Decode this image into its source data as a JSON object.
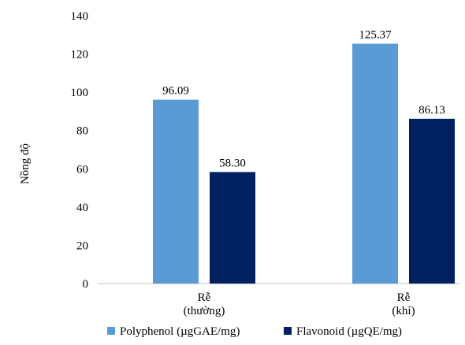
{
  "chart_data": {
    "type": "bar",
    "title": "",
    "xlabel": "",
    "ylabel": "Nồng độ",
    "ylim": [
      0,
      140
    ],
    "yticks": [
      "0",
      "20",
      "40",
      "60",
      "80",
      "100",
      "120",
      "140"
    ],
    "categories": [
      {
        "line1": "Rễ",
        "line2": "(thường)"
      },
      {
        "line1": "Rễ",
        "line2": "(khí)"
      }
    ],
    "series": [
      {
        "name": "Polyphenol (µgGAE/mg)",
        "color": "#5b9bd5",
        "values": [
          96.09,
          125.37
        ],
        "labels": [
          "96.09",
          "125.37"
        ]
      },
      {
        "name": "Flavonoid (µgQE/mg)",
        "color": "#002060",
        "values": [
          58.3,
          86.13
        ],
        "labels": [
          "58.30",
          "86.13"
        ]
      }
    ],
    "grid": false,
    "legend": "bottom"
  }
}
